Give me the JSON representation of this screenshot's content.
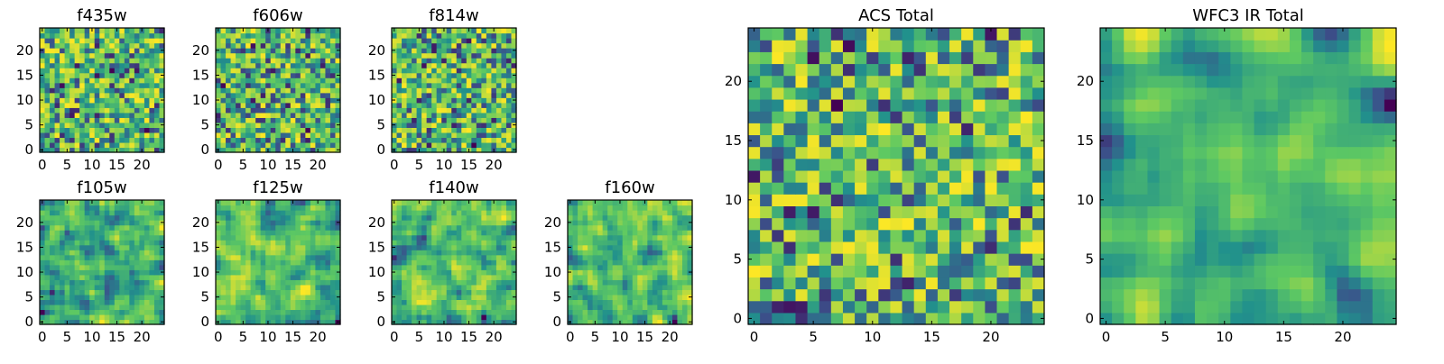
{
  "colormap": [
    "#440154",
    "#3b528b",
    "#21918c",
    "#5ec962",
    "#fde725"
  ],
  "chart_data": [
    {
      "type": "heatmap",
      "title": "f435w",
      "grid_size": 25,
      "xticks": [
        0,
        5,
        10,
        15,
        20
      ],
      "yticks": [
        0,
        5,
        10,
        15,
        20
      ],
      "seed": 11,
      "smooth": 0,
      "value_range": [
        0,
        1
      ]
    },
    {
      "type": "heatmap",
      "title": "f606w",
      "grid_size": 25,
      "xticks": [
        0,
        5,
        10,
        15,
        20
      ],
      "yticks": [
        0,
        5,
        10,
        15,
        20
      ],
      "seed": 23,
      "smooth": 0,
      "value_range": [
        0,
        1
      ]
    },
    {
      "type": "heatmap",
      "title": "f814w",
      "grid_size": 25,
      "xticks": [
        0,
        5,
        10,
        15,
        20
      ],
      "yticks": [
        0,
        5,
        10,
        15,
        20
      ],
      "seed": 37,
      "smooth": 0,
      "value_range": [
        0,
        1
      ]
    },
    {
      "type": "heatmap",
      "title": "f105w",
      "grid_size": 25,
      "xticks": [
        0,
        5,
        10,
        15,
        20
      ],
      "yticks": [
        0,
        5,
        10,
        15,
        20
      ],
      "seed": 41,
      "smooth": 1,
      "value_range": [
        0,
        1
      ]
    },
    {
      "type": "heatmap",
      "title": "f125w",
      "grid_size": 25,
      "xticks": [
        0,
        5,
        10,
        15,
        20
      ],
      "yticks": [
        0,
        5,
        10,
        15,
        20
      ],
      "seed": 53,
      "smooth": 1,
      "value_range": [
        0,
        1
      ]
    },
    {
      "type": "heatmap",
      "title": "f140w",
      "grid_size": 25,
      "xticks": [
        0,
        5,
        10,
        15,
        20
      ],
      "yticks": [
        0,
        5,
        10,
        15,
        20
      ],
      "seed": 67,
      "smooth": 1,
      "value_range": [
        0,
        1
      ]
    },
    {
      "type": "heatmap",
      "title": "f160w",
      "grid_size": 25,
      "xticks": [
        0,
        5,
        10,
        15,
        20
      ],
      "yticks": [
        0,
        5,
        10,
        15,
        20
      ],
      "seed": 79,
      "smooth": 1,
      "value_range": [
        0,
        1
      ]
    },
    {
      "type": "heatmap",
      "title": "ACS Total",
      "grid_size": 25,
      "xticks": [
        0,
        5,
        10,
        15,
        20
      ],
      "yticks": [
        0,
        5,
        10,
        15,
        20
      ],
      "seed": 97,
      "smooth": 0,
      "value_range": [
        0,
        1
      ]
    },
    {
      "type": "heatmap",
      "title": "WFC3 IR Total",
      "grid_size": 25,
      "xticks": [
        0,
        5,
        10,
        15,
        20
      ],
      "yticks": [
        0,
        5,
        10,
        15,
        20
      ],
      "seed": 113,
      "smooth": 2,
      "value_range": [
        0,
        1
      ]
    }
  ]
}
